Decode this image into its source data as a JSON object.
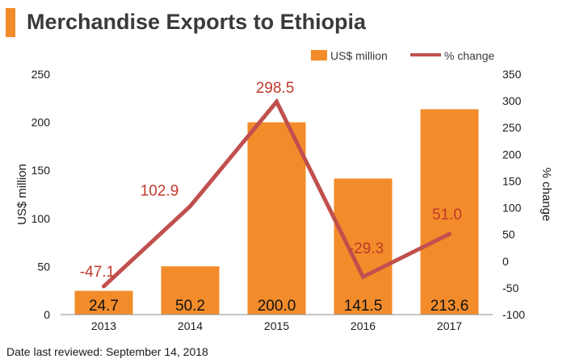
{
  "title": "Merchandise Exports to Ethiopia",
  "footer": "Date last reviewed: September 14, 2018",
  "colors": {
    "accent": "#f28c2b",
    "bar": "#f28c2b",
    "line": "#c0504d",
    "line_label": "#c0392b"
  },
  "chart_data": {
    "type": "bar",
    "categories": [
      "2013",
      "2014",
      "2015",
      "2016",
      "2017"
    ],
    "series": [
      {
        "name": "US$ million",
        "type": "bar",
        "axis": "left",
        "values": [
          24.7,
          50.2,
          200.0,
          141.5,
          213.6
        ],
        "labels": [
          "24.7",
          "50.2",
          "200.0",
          "141.5",
          "213.6"
        ]
      },
      {
        "name": "% change",
        "type": "line",
        "axis": "right",
        "values": [
          -47.1,
          102.9,
          298.5,
          -29.3,
          51.0
        ],
        "labels": [
          "-47.1",
          "102.9",
          "298.5",
          "-29.3",
          "51.0"
        ]
      }
    ],
    "ylabel": "US$ million",
    "ylabel_right": "% change",
    "ylim": [
      0,
      250
    ],
    "ylim_right": [
      -100,
      350
    ],
    "yticks": [
      "0",
      "50",
      "100",
      "150",
      "200",
      "250"
    ],
    "yticks_right": [
      "-100",
      "-50",
      "0",
      "50",
      "100",
      "150",
      "200",
      "250",
      "300",
      "350"
    ],
    "grid": false,
    "legend": "top-right"
  }
}
